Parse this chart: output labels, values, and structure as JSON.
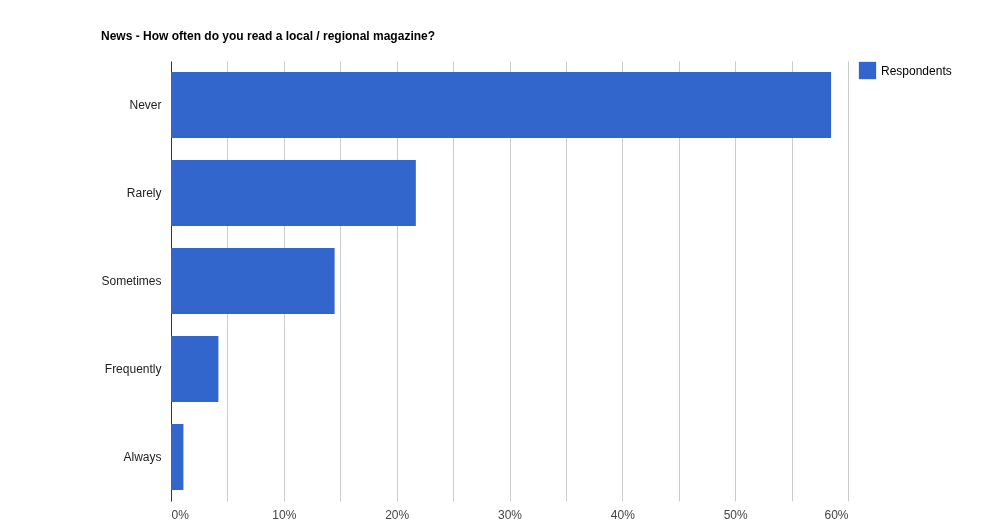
{
  "chart_data": {
    "type": "bar",
    "orientation": "horizontal",
    "title": "News - How often do you read a local / regional magazine?",
    "categories": [
      "Never",
      "Rarely",
      "Sometimes",
      "Frequently",
      "Always"
    ],
    "series": [
      {
        "name": "Respondents",
        "color": "#3366cc",
        "values": [
          58.5,
          21.7,
          14.5,
          4.2,
          1.1
        ]
      }
    ],
    "xlim": [
      0,
      60
    ],
    "xticks": [
      {
        "value": 0,
        "label": "0%"
      },
      {
        "value": 5,
        "label": null
      },
      {
        "value": 10,
        "label": "10%"
      },
      {
        "value": 15,
        "label": null
      },
      {
        "value": 20,
        "label": "20%"
      },
      {
        "value": 25,
        "label": null
      },
      {
        "value": 30,
        "label": "30%"
      },
      {
        "value": 35,
        "label": null
      },
      {
        "value": 40,
        "label": "40%"
      },
      {
        "value": 45,
        "label": null
      },
      {
        "value": 50,
        "label": "50%"
      },
      {
        "value": 55,
        "label": null
      },
      {
        "value": 60,
        "label": "60%"
      }
    ],
    "grid": "x",
    "legend": "top right"
  }
}
